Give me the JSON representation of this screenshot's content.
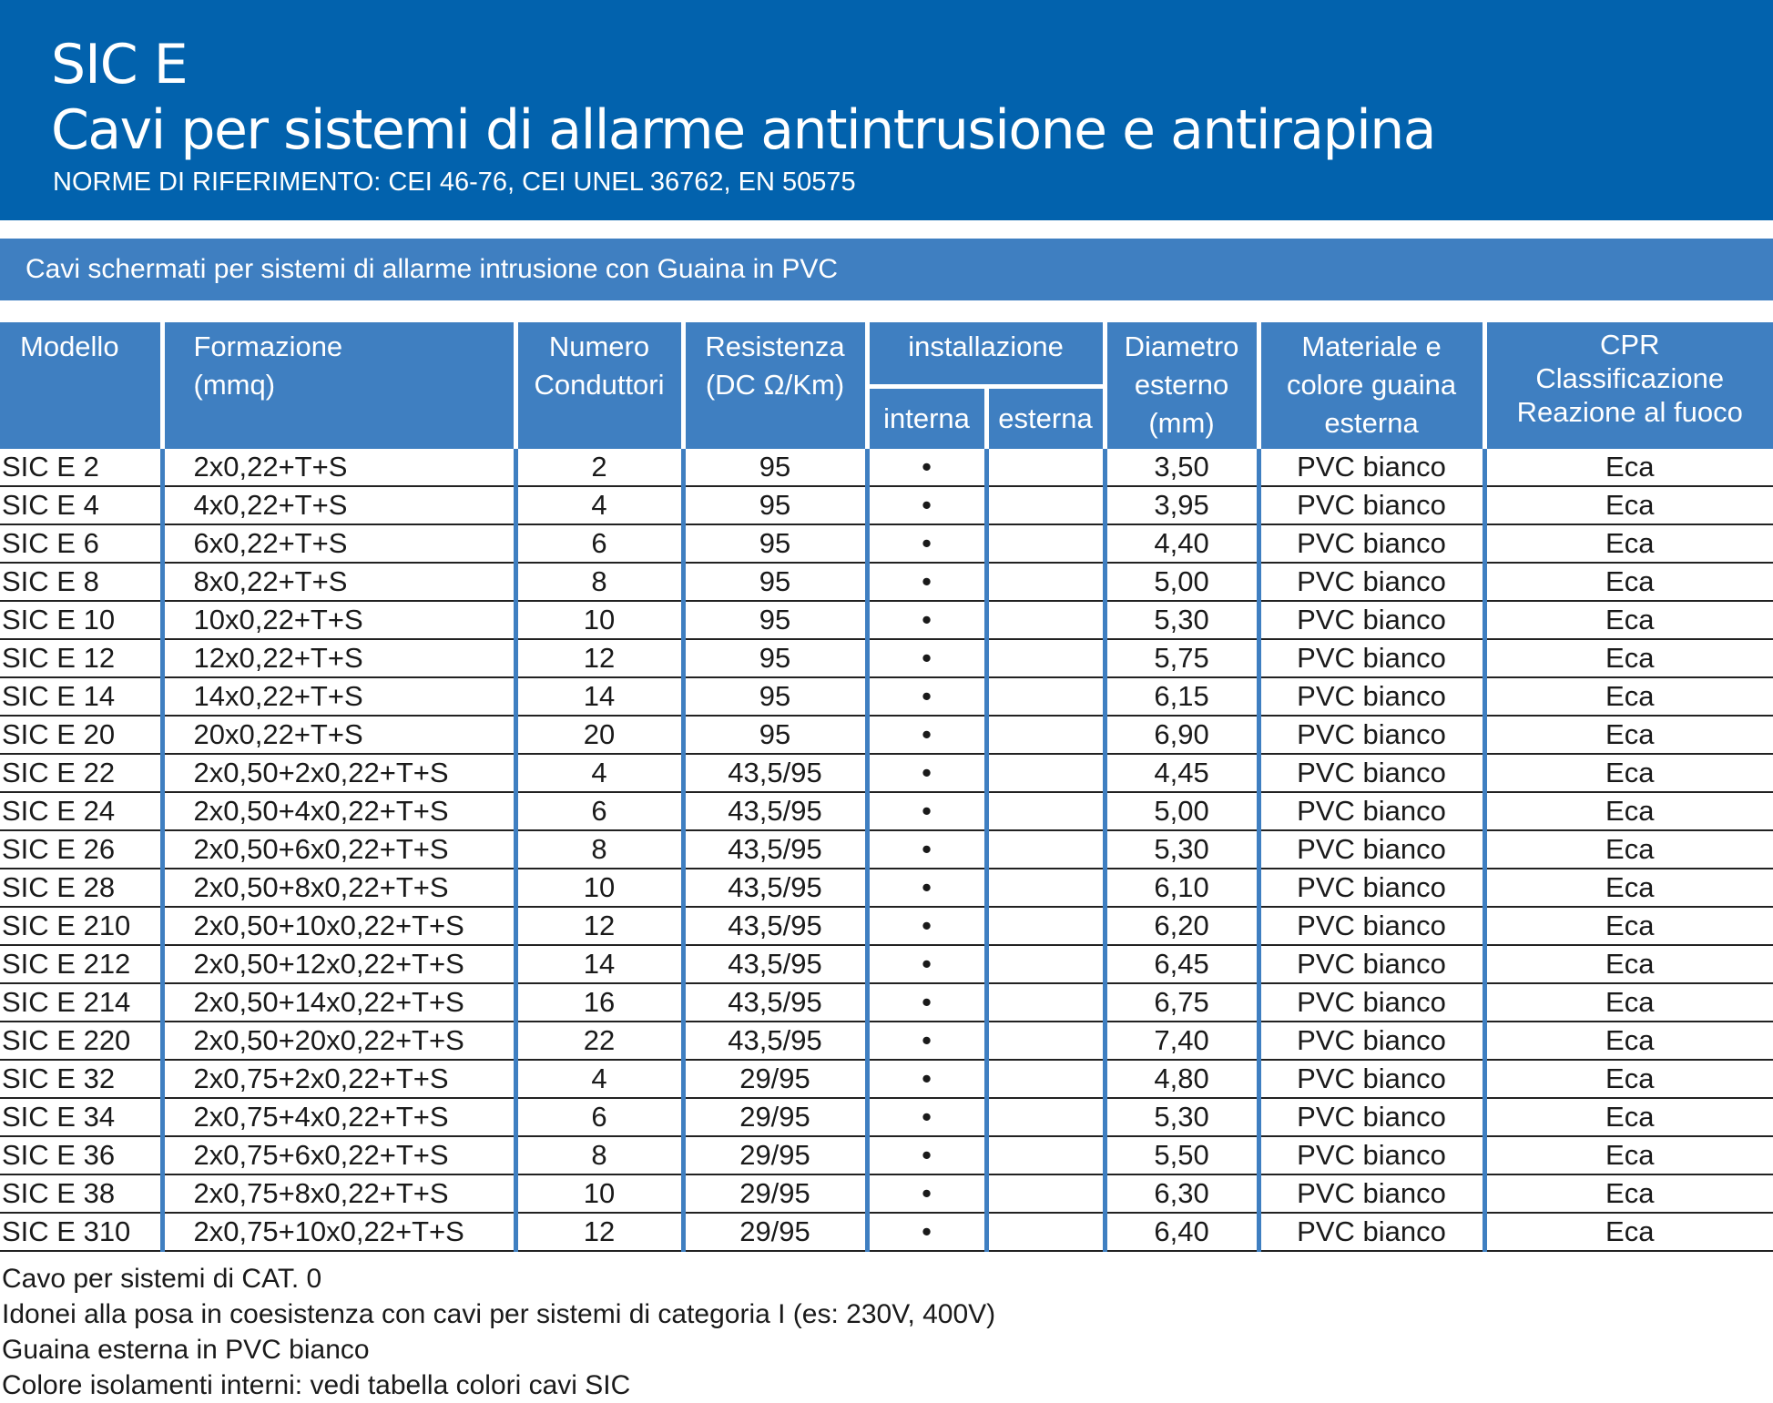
{
  "header": {
    "title": "SIC E",
    "subtitle": "Cavi per sistemi di allarme antintrusione e antirapina",
    "norms": "NORME DI RIFERIMENTO: CEI 46-76, CEI UNEL 36762, EN 50575"
  },
  "section_title": "Cavi schermati per sistemi di allarme intrusione con Guaina in PVC",
  "colors": {
    "header_bg": "#0262ad",
    "table_blue": "#3f7fc1"
  },
  "columns": {
    "modello": "Modello",
    "formazione": [
      "Formazione",
      "(mmq)"
    ],
    "numero": [
      "Numero",
      "Conduttori"
    ],
    "resistenza": [
      "Resistenza",
      "(DC Ω/Km)"
    ],
    "installazione": "installazione",
    "interna": "interna",
    "esterna": "esterna",
    "diametro": [
      "Diametro",
      "esterno",
      "(mm)"
    ],
    "materiale": [
      "Materiale e",
      "colore guaina",
      "esterna"
    ],
    "cpr": [
      "CPR",
      "Classificazione",
      "Reazione al fuoco"
    ]
  },
  "rows": [
    [
      "SIC E 2",
      "2x0,22+T+S",
      "2",
      "95",
      "•",
      "",
      "3,50",
      "PVC bianco",
      "Eca"
    ],
    [
      "SIC E 4",
      "4x0,22+T+S",
      "4",
      "95",
      "•",
      "",
      "3,95",
      "PVC bianco",
      "Eca"
    ],
    [
      "SIC E 6",
      "6x0,22+T+S",
      "6",
      "95",
      "•",
      "",
      "4,40",
      "PVC bianco",
      "Eca"
    ],
    [
      "SIC E 8",
      "8x0,22+T+S",
      "8",
      "95",
      "•",
      "",
      "5,00",
      "PVC bianco",
      "Eca"
    ],
    [
      "SIC E 10",
      "10x0,22+T+S",
      "10",
      "95",
      "•",
      "",
      "5,30",
      "PVC bianco",
      "Eca"
    ],
    [
      "SIC E 12",
      "12x0,22+T+S",
      "12",
      "95",
      "•",
      "",
      "5,75",
      "PVC bianco",
      "Eca"
    ],
    [
      "SIC E 14",
      "14x0,22+T+S",
      "14",
      "95",
      "•",
      "",
      "6,15",
      "PVC bianco",
      "Eca"
    ],
    [
      "SIC E 20",
      "20x0,22+T+S",
      "20",
      "95",
      "•",
      "",
      "6,90",
      "PVC bianco",
      "Eca"
    ],
    [
      "SIC E 22",
      "2x0,50+2x0,22+T+S",
      "4",
      "43,5/95",
      "•",
      "",
      "4,45",
      "PVC bianco",
      "Eca"
    ],
    [
      "SIC E 24",
      "2x0,50+4x0,22+T+S",
      "6",
      "43,5/95",
      "•",
      "",
      "5,00",
      "PVC bianco",
      "Eca"
    ],
    [
      "SIC E 26",
      "2x0,50+6x0,22+T+S",
      "8",
      "43,5/95",
      "•",
      "",
      "5,30",
      "PVC bianco",
      "Eca"
    ],
    [
      "SIC E 28",
      "2x0,50+8x0,22+T+S",
      "10",
      "43,5/95",
      "•",
      "",
      "6,10",
      "PVC bianco",
      "Eca"
    ],
    [
      "SIC E 210",
      "2x0,50+10x0,22+T+S",
      "12",
      "43,5/95",
      "•",
      "",
      "6,20",
      "PVC bianco",
      "Eca"
    ],
    [
      "SIC E 212",
      "2x0,50+12x0,22+T+S",
      "14",
      "43,5/95",
      "•",
      "",
      "6,45",
      "PVC bianco",
      "Eca"
    ],
    [
      "SIC E 214",
      "2x0,50+14x0,22+T+S",
      "16",
      "43,5/95",
      "•",
      "",
      "6,75",
      "PVC bianco",
      "Eca"
    ],
    [
      "SIC E 220",
      "2x0,50+20x0,22+T+S",
      "22",
      "43,5/95",
      "•",
      "",
      "7,40",
      "PVC bianco",
      "Eca"
    ],
    [
      "SIC E 32",
      "2x0,75+2x0,22+T+S",
      "4",
      "29/95",
      "•",
      "",
      "4,80",
      "PVC bianco",
      "Eca"
    ],
    [
      "SIC E 34",
      "2x0,75+4x0,22+T+S",
      "6",
      "29/95",
      "•",
      "",
      "5,30",
      "PVC bianco",
      "Eca"
    ],
    [
      "SIC E 36",
      "2x0,75+6x0,22+T+S",
      "8",
      "29/95",
      "•",
      "",
      "5,50",
      "PVC bianco",
      "Eca"
    ],
    [
      "SIC E 38",
      "2x0,75+8x0,22+T+S",
      "10",
      "29/95",
      "•",
      "",
      "6,30",
      "PVC bianco",
      "Eca"
    ],
    [
      "SIC E 310",
      "2x0,75+10x0,22+T+S",
      "12",
      "29/95",
      "•",
      "",
      "6,40",
      "PVC bianco",
      "Eca"
    ]
  ],
  "notes": [
    "Cavo per sistemi di CAT. 0",
    "Idonei alla posa in coesistenza con cavi per sistemi di categoria I (es: 230V, 400V)",
    "Guaina esterna in PVC bianco",
    "Colore isolamenti interni: vedi tabella colori cavi SIC"
  ]
}
